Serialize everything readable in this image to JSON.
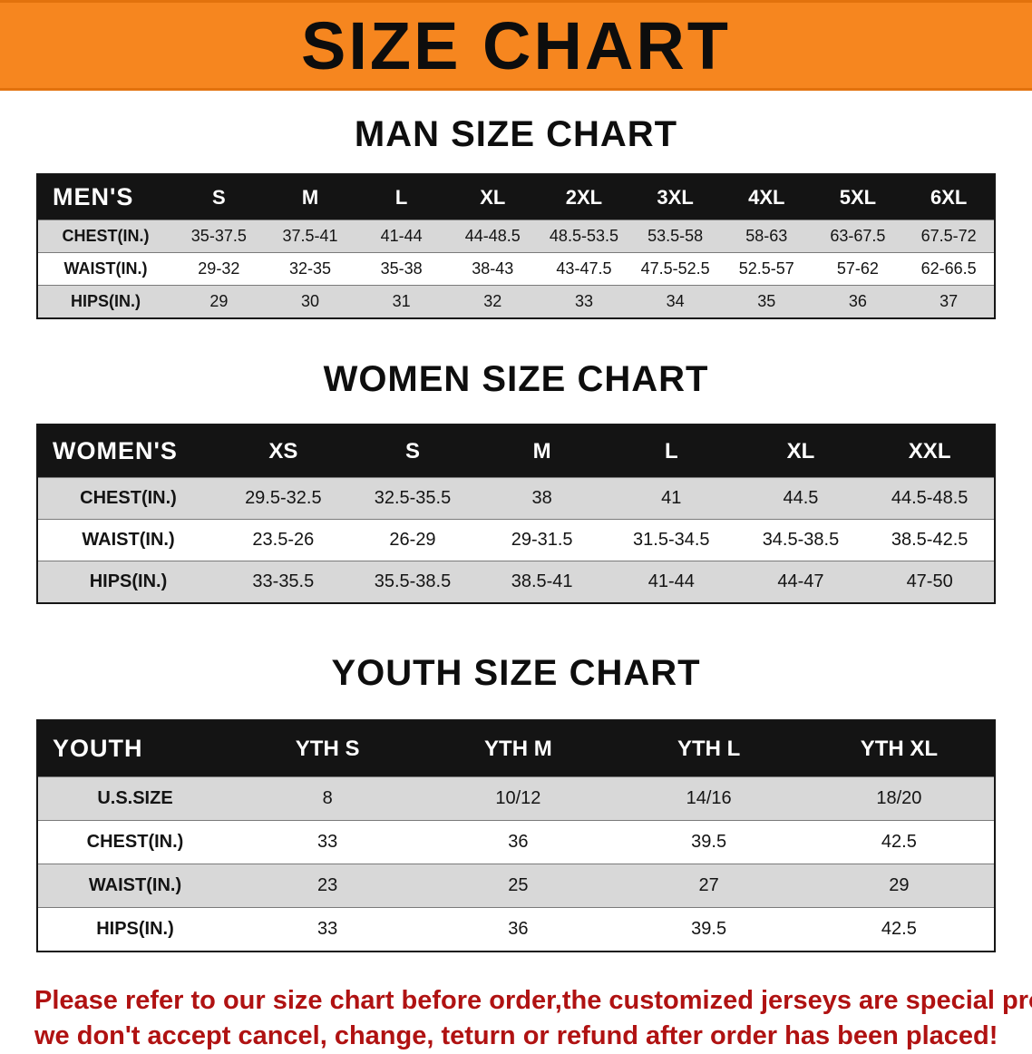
{
  "banner": {
    "title": "SIZE CHART"
  },
  "men": {
    "heading": "MAN SIZE CHART",
    "table": {
      "header": [
        "MEN'S",
        "S",
        "M",
        "L",
        "XL",
        "2XL",
        "3XL",
        "4XL",
        "5XL",
        "6XL"
      ],
      "rows": [
        [
          "CHEST(IN.)",
          "35-37.5",
          "37.5-41",
          "41-44",
          "44-48.5",
          "48.5-53.5",
          "53.5-58",
          "58-63",
          "63-67.5",
          "67.5-72"
        ],
        [
          "WAIST(IN.)",
          "29-32",
          "32-35",
          "35-38",
          "38-43",
          "43-47.5",
          "47.5-52.5",
          "52.5-57",
          "57-62",
          "62-66.5"
        ],
        [
          "HIPS(IN.)",
          "29",
          "30",
          "31",
          "32",
          "33",
          "34",
          "35",
          "36",
          "37"
        ]
      ]
    }
  },
  "women": {
    "heading": "WOMEN SIZE CHART",
    "table": {
      "header": [
        "WOMEN'S",
        "XS",
        "S",
        "M",
        "L",
        "XL",
        "XXL"
      ],
      "rows": [
        [
          "CHEST(IN.)",
          "29.5-32.5",
          "32.5-35.5",
          "38",
          "41",
          "44.5",
          "44.5-48.5"
        ],
        [
          "WAIST(IN.)",
          "23.5-26",
          "26-29",
          "29-31.5",
          "31.5-34.5",
          "34.5-38.5",
          "38.5-42.5"
        ],
        [
          "HIPS(IN.)",
          "33-35.5",
          "35.5-38.5",
          "38.5-41",
          "41-44",
          "44-47",
          "47-50"
        ]
      ]
    }
  },
  "youth": {
    "heading": "YOUTH SIZE CHART",
    "table": {
      "header": [
        "YOUTH",
        "YTH S",
        "YTH M",
        "YTH L",
        "YTH XL"
      ],
      "rows": [
        [
          "U.S.SIZE",
          "8",
          "10/12",
          "14/16",
          "18/20"
        ],
        [
          "CHEST(IN.)",
          "33",
          "36",
          "39.5",
          "42.5"
        ],
        [
          "WAIST(IN.)",
          "23",
          "25",
          "27",
          "29"
        ],
        [
          "HIPS(IN.)",
          "33",
          "36",
          "39.5",
          "42.5"
        ]
      ]
    }
  },
  "notice": {
    "line1": "Please refer to our size chart before order,the customized jerseys are special products,",
    "line2": "we don't accept cancel, change, teturn or refund after order has been placed!"
  },
  "colors": {
    "banner_orange": "#F6861F",
    "table_header_black": "#141414",
    "row_gray": "#D8D8D8",
    "notice_red": "#B01212"
  }
}
